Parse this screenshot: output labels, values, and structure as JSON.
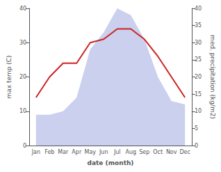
{
  "chart_data": {
    "type": "line",
    "categories": [
      "Jan",
      "Feb",
      "Mar",
      "Apr",
      "May",
      "Jun",
      "Jul",
      "Aug",
      "Sep",
      "Oct",
      "Nov",
      "Dec"
    ],
    "series": [
      {
        "type": "area",
        "axis": "y2",
        "color": "#b8c0e8",
        "values": [
          9,
          9,
          10,
          14,
          28,
          33,
          40,
          38,
          31,
          20,
          13,
          12
        ]
      },
      {
        "type": "line",
        "color": "#cc2222",
        "values": [
          14,
          20,
          24,
          24,
          30,
          31,
          34,
          34,
          31,
          26,
          20,
          14
        ]
      }
    ],
    "xlabel": "date (month)",
    "ylabel": "max temp (C)",
    "y2label": "med. precipitation (kg/m2)",
    "ylim": [
      0,
      40
    ],
    "yticks": [
      0,
      10,
      20,
      30,
      40
    ],
    "y2lim": [
      0,
      40
    ],
    "y2ticks": [
      0,
      5,
      10,
      15,
      20,
      25,
      30,
      35,
      40
    ],
    "grid": false
  }
}
